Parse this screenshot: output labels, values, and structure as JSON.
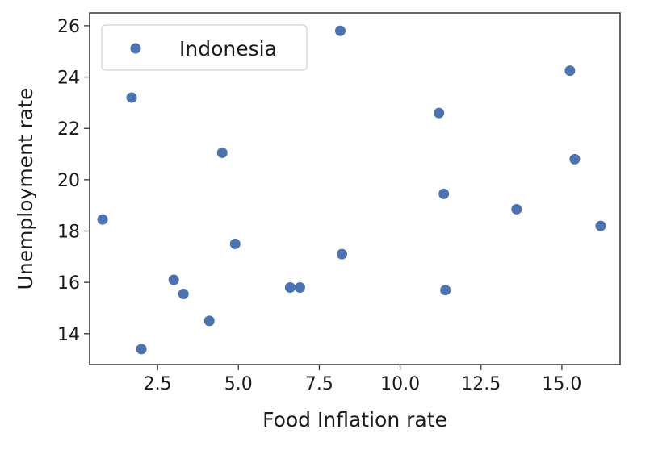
{
  "chart_data": {
    "type": "scatter",
    "title": "",
    "xlabel": "Food Inflation rate",
    "ylabel": "Unemployment rate",
    "xlim": [
      0.4,
      16.8
    ],
    "ylim": [
      12.8,
      26.5
    ],
    "xticks": [
      2.5,
      5.0,
      7.5,
      10.0,
      12.5,
      15.0
    ],
    "xtick_labels": [
      "2.5",
      "5.0",
      "7.5",
      "10.0",
      "12.5",
      "15.0"
    ],
    "yticks": [
      14,
      16,
      18,
      20,
      22,
      24,
      26
    ],
    "ytick_labels": [
      "14",
      "16",
      "18",
      "20",
      "22",
      "24",
      "26"
    ],
    "grid": false,
    "legend_position": "top-left",
    "series": [
      {
        "name": "Indonesia",
        "color": "#4c72b0",
        "points": [
          {
            "x": 0.8,
            "y": 18.45
          },
          {
            "x": 1.7,
            "y": 23.2
          },
          {
            "x": 2.0,
            "y": 13.4
          },
          {
            "x": 3.0,
            "y": 16.1
          },
          {
            "x": 3.3,
            "y": 15.55
          },
          {
            "x": 4.1,
            "y": 14.5
          },
          {
            "x": 4.5,
            "y": 21.05
          },
          {
            "x": 4.9,
            "y": 17.5
          },
          {
            "x": 6.6,
            "y": 15.8
          },
          {
            "x": 6.9,
            "y": 15.8
          },
          {
            "x": 8.15,
            "y": 25.8
          },
          {
            "x": 8.2,
            "y": 17.1
          },
          {
            "x": 11.2,
            "y": 22.6
          },
          {
            "x": 11.35,
            "y": 19.45
          },
          {
            "x": 11.4,
            "y": 15.7
          },
          {
            "x": 13.6,
            "y": 18.85
          },
          {
            "x": 15.25,
            "y": 24.25
          },
          {
            "x": 15.4,
            "y": 20.8
          },
          {
            "x": 16.2,
            "y": 18.2
          }
        ]
      }
    ]
  }
}
